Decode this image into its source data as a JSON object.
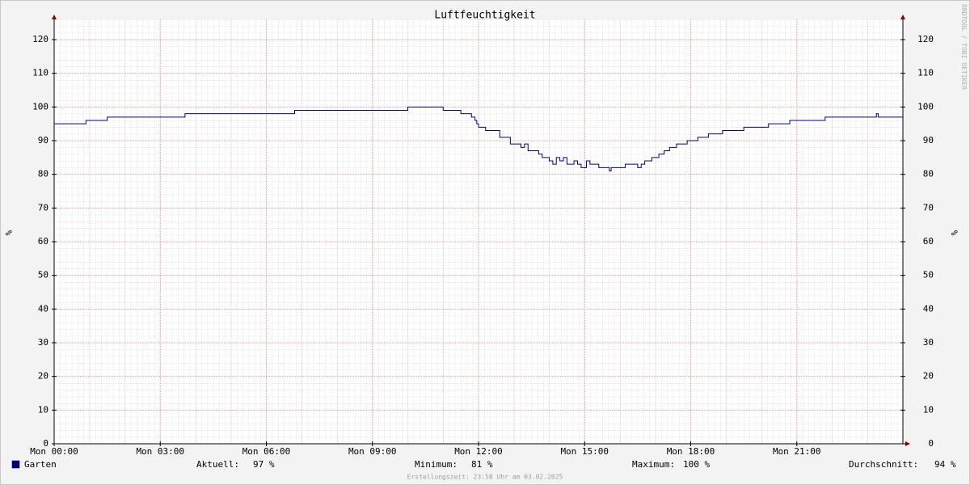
{
  "chart_data": {
    "type": "line",
    "title": "Luftfeuchtigkeit",
    "y_label": "%",
    "x": [
      0,
      0.9,
      1.5,
      3.7,
      6.8,
      10.0,
      11.0,
      11.5,
      11.8,
      11.9,
      11.95,
      12.0,
      12.2,
      12.6,
      12.9,
      13.2,
      13.3,
      13.4,
      13.7,
      13.8,
      14.0,
      14.1,
      14.2,
      14.3,
      14.4,
      14.5,
      14.7,
      14.8,
      14.9,
      15.05,
      15.15,
      15.4,
      15.7,
      15.75,
      16.15,
      16.5,
      16.6,
      16.7,
      16.9,
      17.1,
      17.25,
      17.4,
      17.6,
      17.9,
      18.2,
      18.5,
      18.9,
      19.5,
      20.2,
      20.8,
      21.8,
      23.25,
      23.3
    ],
    "series": [
      {
        "name": "Garten",
        "color": "#00008b",
        "values": [
          95,
          96,
          97,
          98,
          99,
          100,
          99,
          98,
          97,
          96,
          95,
          94,
          93,
          91,
          89,
          88,
          89,
          87,
          86,
          85,
          84,
          83,
          85,
          84,
          85,
          83,
          84,
          83,
          82,
          84,
          83,
          82,
          81,
          82,
          83,
          82,
          83,
          84,
          85,
          86,
          87,
          88,
          89,
          90,
          91,
          92,
          93,
          94,
          95,
          96,
          97,
          98,
          97
        ]
      }
    ],
    "xlim": [
      0,
      24
    ],
    "xticks": [
      {
        "value": 0,
        "label": "Mon 00:00"
      },
      {
        "value": 3,
        "label": "Mon 03:00"
      },
      {
        "value": 6,
        "label": "Mon 06:00"
      },
      {
        "value": 9,
        "label": "Mon 09:00"
      },
      {
        "value": 12,
        "label": "Mon 12:00"
      },
      {
        "value": 15,
        "label": "Mon 15:00"
      },
      {
        "value": 18,
        "label": "Mon 18:00"
      },
      {
        "value": 21,
        "label": "Mon 21:00"
      }
    ],
    "ylim": [
      0,
      126
    ],
    "yticks": [
      0,
      10,
      20,
      30,
      40,
      50,
      60,
      70,
      80,
      90,
      100,
      110,
      120
    ],
    "grid": true,
    "stats": [
      {
        "label": "Aktuell:",
        "value": "97 %"
      },
      {
        "label": "Minimum:",
        "value": "81 %"
      },
      {
        "label": "Maximum:",
        "value": "100 %"
      },
      {
        "label": "Durchschnitt:",
        "value": "94 %"
      }
    ],
    "footer": "Erstellungszeit: 23:58 Uhr am 03.02.2025",
    "watermark": "RRDTOOL / TOBI OETIKER"
  }
}
